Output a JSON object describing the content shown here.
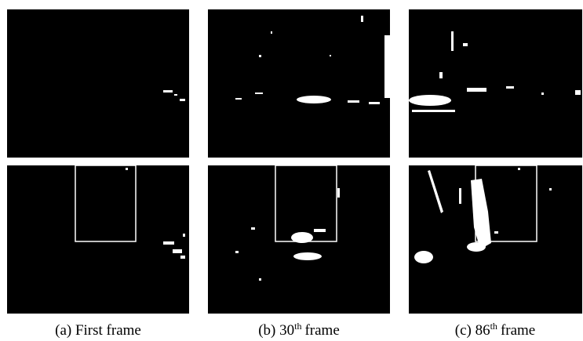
{
  "figure": {
    "panels": [
      {
        "label": "(a) First frame"
      },
      {
        "label": "(b) 30",
        "superscript": "th",
        "suffix": "frame"
      },
      {
        "label": "(c) 86",
        "superscript": "th",
        "suffix": "frame"
      }
    ]
  }
}
